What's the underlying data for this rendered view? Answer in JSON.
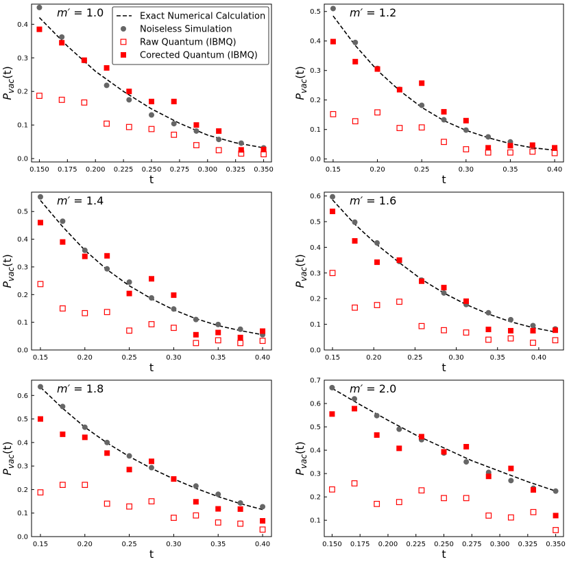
{
  "figure": {
    "ylabel": "P_vac(t)",
    "colors": {
      "exact_line": "#000000",
      "noiseless": "#666666",
      "raw": "#ff0000",
      "corrected": "#ff0000",
      "frame": "#000000"
    }
  },
  "legend": {
    "items": [
      {
        "key": "exact",
        "label": "Exact Numerical Calculation"
      },
      {
        "key": "noiseless",
        "label": "Noiseless Simulation"
      },
      {
        "key": "raw",
        "label": "Raw Quantum (IBMQ)"
      },
      {
        "key": "corrected",
        "label": "Corected Quantum (IBMQ)"
      }
    ]
  },
  "chart_data": [
    {
      "type": "scatter",
      "title": "m′ = 1.0",
      "xlabel": "t",
      "ylabel": "P_vac(t)",
      "xlim": [
        0.143,
        0.357
      ],
      "ylim": [
        -0.01,
        0.46
      ],
      "xticks": [
        0.15,
        0.175,
        0.2,
        0.225,
        0.25,
        0.275,
        0.3,
        0.325,
        0.35
      ],
      "xtick_labels": [
        "0.150",
        "0.175",
        "0.200",
        "0.225",
        "0.250",
        "0.275",
        "0.300",
        "0.325",
        "0.350"
      ],
      "yticks": [
        0.0,
        0.1,
        0.2,
        0.3,
        0.4
      ],
      "ytick_labels": [
        "0.0",
        "0.1",
        "0.2",
        "0.3",
        "0.4"
      ],
      "exact": {
        "x": [
          0.15,
          0.175,
          0.2,
          0.225,
          0.25,
          0.275,
          0.3,
          0.325,
          0.35
        ],
        "y": [
          0.42,
          0.335,
          0.26,
          0.2,
          0.148,
          0.105,
          0.07,
          0.047,
          0.032
        ]
      },
      "noiseless": {
        "x": [
          0.15,
          0.17,
          0.19,
          0.21,
          0.23,
          0.25,
          0.27,
          0.29,
          0.31,
          0.33,
          0.35
        ],
        "y": [
          0.45,
          0.362,
          0.292,
          0.218,
          0.175,
          0.13,
          0.104,
          0.082,
          0.057,
          0.046,
          0.032
        ]
      },
      "raw": {
        "x": [
          0.15,
          0.17,
          0.19,
          0.21,
          0.23,
          0.25,
          0.27,
          0.29,
          0.31,
          0.33,
          0.35
        ],
        "y": [
          0.187,
          0.175,
          0.167,
          0.104,
          0.094,
          0.088,
          0.071,
          0.04,
          0.025,
          0.015,
          0.013
        ]
      },
      "corrected": {
        "x": [
          0.15,
          0.17,
          0.19,
          0.21,
          0.23,
          0.25,
          0.27,
          0.29,
          0.31,
          0.33,
          0.35
        ],
        "y": [
          0.385,
          0.345,
          0.293,
          0.27,
          0.2,
          0.17,
          0.17,
          0.1,
          0.082,
          0.026,
          0.027
        ]
      }
    },
    {
      "type": "scatter",
      "title": "m′ = 1.2",
      "xlabel": "t",
      "ylabel": "P_vac(t)",
      "xlim": [
        0.14,
        0.41
      ],
      "ylim": [
        -0.01,
        0.525
      ],
      "xticks": [
        0.15,
        0.2,
        0.25,
        0.3,
        0.35,
        0.4
      ],
      "xtick_labels": [
        "0.15",
        "0.20",
        "0.25",
        "0.30",
        "0.35",
        "0.40"
      ],
      "yticks": [
        0.0,
        0.1,
        0.2,
        0.3,
        0.4,
        0.5
      ],
      "ytick_labels": [
        "0.0",
        "0.1",
        "0.2",
        "0.3",
        "0.4",
        "0.5"
      ],
      "exact": {
        "x": [
          0.15,
          0.175,
          0.2,
          0.225,
          0.25,
          0.275,
          0.3,
          0.325,
          0.35,
          0.375,
          0.4
        ],
        "y": [
          0.485,
          0.385,
          0.3,
          0.232,
          0.175,
          0.13,
          0.097,
          0.072,
          0.052,
          0.038,
          0.03
        ]
      },
      "noiseless": {
        "x": [
          0.15,
          0.175,
          0.2,
          0.225,
          0.25,
          0.275,
          0.3,
          0.325,
          0.35,
          0.375,
          0.4
        ],
        "y": [
          0.51,
          0.395,
          0.307,
          0.236,
          0.182,
          0.133,
          0.098,
          0.075,
          0.058,
          0.044,
          0.035
        ]
      },
      "raw": {
        "x": [
          0.15,
          0.175,
          0.2,
          0.225,
          0.25,
          0.275,
          0.3,
          0.325,
          0.35,
          0.375,
          0.4
        ],
        "y": [
          0.152,
          0.128,
          0.158,
          0.105,
          0.107,
          0.058,
          0.033,
          0.022,
          0.022,
          0.025,
          0.02
        ]
      },
      "corrected": {
        "x": [
          0.15,
          0.175,
          0.2,
          0.225,
          0.25,
          0.275,
          0.3,
          0.325,
          0.35,
          0.375,
          0.4
        ],
        "y": [
          0.398,
          0.33,
          0.305,
          0.235,
          0.257,
          0.16,
          0.13,
          0.038,
          0.045,
          0.047,
          0.038
        ]
      }
    },
    {
      "type": "scatter",
      "title": "m′ = 1.4",
      "xlabel": "t",
      "ylabel": "P_vac(t)",
      "xlim": [
        0.14,
        0.41
      ],
      "ylim": [
        0.0,
        0.57
      ],
      "xticks": [
        0.15,
        0.2,
        0.25,
        0.3,
        0.35,
        0.4
      ],
      "xtick_labels": [
        "0.15",
        "0.20",
        "0.25",
        "0.30",
        "0.35",
        "0.40"
      ],
      "yticks": [
        0.0,
        0.1,
        0.2,
        0.3,
        0.4,
        0.5
      ],
      "ytick_labels": [
        "0.0",
        "0.1",
        "0.2",
        "0.3",
        "0.4",
        "0.5"
      ],
      "exact": {
        "x": [
          0.15,
          0.175,
          0.2,
          0.225,
          0.25,
          0.275,
          0.3,
          0.325,
          0.35,
          0.375,
          0.4
        ],
        "y": [
          0.54,
          0.445,
          0.36,
          0.29,
          0.232,
          0.185,
          0.145,
          0.113,
          0.088,
          0.07,
          0.055
        ]
      },
      "noiseless": {
        "x": [
          0.15,
          0.175,
          0.2,
          0.225,
          0.25,
          0.275,
          0.3,
          0.325,
          0.35,
          0.375,
          0.4
        ],
        "y": [
          0.553,
          0.465,
          0.36,
          0.293,
          0.245,
          0.188,
          0.148,
          0.11,
          0.092,
          0.075,
          0.055
        ]
      },
      "raw": {
        "x": [
          0.15,
          0.175,
          0.2,
          0.225,
          0.25,
          0.275,
          0.3,
          0.325,
          0.35,
          0.375,
          0.4
        ],
        "y": [
          0.238,
          0.15,
          0.133,
          0.137,
          0.07,
          0.093,
          0.08,
          0.025,
          0.035,
          0.025,
          0.033
        ]
      },
      "corrected": {
        "x": [
          0.15,
          0.175,
          0.2,
          0.225,
          0.25,
          0.275,
          0.3,
          0.325,
          0.35,
          0.375,
          0.4
        ],
        "y": [
          0.46,
          0.39,
          0.338,
          0.34,
          0.204,
          0.257,
          0.198,
          0.055,
          0.063,
          0.045,
          0.068
        ]
      }
    },
    {
      "type": "scatter",
      "title": "m′ = 1.6",
      "xlabel": "t",
      "ylabel": "P_vac(t)",
      "xlim": [
        0.14,
        0.43
      ],
      "ylim": [
        0.0,
        0.615
      ],
      "xticks": [
        0.15,
        0.2,
        0.25,
        0.3,
        0.35,
        0.4
      ],
      "xtick_labels": [
        "0.15",
        "0.20",
        "0.25",
        "0.30",
        "0.35",
        "0.40"
      ],
      "yticks": [
        0.0,
        0.1,
        0.2,
        0.3,
        0.4,
        0.5,
        0.6
      ],
      "ytick_labels": [
        "0.0",
        "0.1",
        "0.2",
        "0.3",
        "0.4",
        "0.5",
        "0.6"
      ],
      "exact": {
        "x": [
          0.15,
          0.177,
          0.204,
          0.231,
          0.258,
          0.285,
          0.312,
          0.339,
          0.366,
          0.393,
          0.42
        ],
        "y": [
          0.585,
          0.49,
          0.41,
          0.34,
          0.275,
          0.222,
          0.177,
          0.14,
          0.11,
          0.087,
          0.07
        ]
      },
      "noiseless": {
        "x": [
          0.15,
          0.177,
          0.204,
          0.231,
          0.258,
          0.285,
          0.312,
          0.339,
          0.366,
          0.393,
          0.42
        ],
        "y": [
          0.597,
          0.498,
          0.417,
          0.345,
          0.272,
          0.222,
          0.177,
          0.145,
          0.118,
          0.095,
          0.082
        ]
      },
      "raw": {
        "x": [
          0.15,
          0.177,
          0.204,
          0.231,
          0.258,
          0.285,
          0.312,
          0.339,
          0.366,
          0.393,
          0.42
        ],
        "y": [
          0.3,
          0.165,
          0.175,
          0.188,
          0.093,
          0.077,
          0.068,
          0.04,
          0.045,
          0.028,
          0.038
        ]
      },
      "corrected": {
        "x": [
          0.15,
          0.177,
          0.204,
          0.231,
          0.258,
          0.285,
          0.312,
          0.339,
          0.366,
          0.393,
          0.42
        ],
        "y": [
          0.54,
          0.425,
          0.342,
          0.35,
          0.268,
          0.243,
          0.19,
          0.08,
          0.075,
          0.075,
          0.077
        ]
      }
    },
    {
      "type": "scatter",
      "title": "m′ = 1.8",
      "xlabel": "t",
      "ylabel": "P_vac(t)",
      "xlim": [
        0.14,
        0.41
      ],
      "ylim": [
        0.0,
        0.665
      ],
      "xticks": [
        0.15,
        0.2,
        0.25,
        0.3,
        0.35,
        0.4
      ],
      "xtick_labels": [
        "0.15",
        "0.20",
        "0.25",
        "0.30",
        "0.35",
        "0.40"
      ],
      "yticks": [
        0.0,
        0.1,
        0.2,
        0.3,
        0.4,
        0.5,
        0.6
      ],
      "ytick_labels": [
        "0.0",
        "0.1",
        "0.2",
        "0.3",
        "0.4",
        "0.5",
        "0.6"
      ],
      "exact": {
        "x": [
          0.15,
          0.175,
          0.2,
          0.225,
          0.25,
          0.275,
          0.3,
          0.325,
          0.35,
          0.375,
          0.4
        ],
        "y": [
          0.635,
          0.545,
          0.465,
          0.398,
          0.34,
          0.29,
          0.245,
          0.205,
          0.17,
          0.14,
          0.115
        ]
      },
      "noiseless": {
        "x": [
          0.15,
          0.175,
          0.2,
          0.225,
          0.25,
          0.275,
          0.3,
          0.325,
          0.35,
          0.375,
          0.4
        ],
        "y": [
          0.637,
          0.553,
          0.465,
          0.4,
          0.343,
          0.293,
          0.245,
          0.215,
          0.18,
          0.143,
          0.127
        ]
      },
      "raw": {
        "x": [
          0.15,
          0.175,
          0.2,
          0.225,
          0.25,
          0.275,
          0.3,
          0.325,
          0.35,
          0.375,
          0.4
        ],
        "y": [
          0.188,
          0.22,
          0.22,
          0.14,
          0.128,
          0.15,
          0.08,
          0.09,
          0.06,
          0.055,
          0.03
        ]
      },
      "corrected": {
        "x": [
          0.15,
          0.175,
          0.2,
          0.225,
          0.25,
          0.275,
          0.3,
          0.325,
          0.35,
          0.375,
          0.4
        ],
        "y": [
          0.5,
          0.435,
          0.422,
          0.355,
          0.285,
          0.32,
          0.245,
          0.148,
          0.118,
          0.117,
          0.067
        ]
      }
    },
    {
      "type": "scatter",
      "title": "m′ = 2.0",
      "xlabel": "t",
      "ylabel": "P_vac(t)",
      "xlim": [
        0.143,
        0.357
      ],
      "ylim": [
        0.03,
        0.7
      ],
      "xticks": [
        0.15,
        0.175,
        0.2,
        0.225,
        0.25,
        0.275,
        0.3,
        0.325,
        0.35
      ],
      "xtick_labels": [
        "0.150",
        "0.175",
        "0.200",
        "0.225",
        "0.250",
        "0.275",
        "0.300",
        "0.325",
        "0.350"
      ],
      "yticks": [
        0.1,
        0.2,
        0.3,
        0.4,
        0.5,
        0.6,
        0.7
      ],
      "ytick_labels": [
        "0.1",
        "0.2",
        "0.3",
        "0.4",
        "0.5",
        "0.6",
        "0.7"
      ],
      "exact": {
        "x": [
          0.15,
          0.175,
          0.2,
          0.225,
          0.25,
          0.275,
          0.3,
          0.325,
          0.35
        ],
        "y": [
          0.665,
          0.595,
          0.528,
          0.465,
          0.41,
          0.355,
          0.31,
          0.265,
          0.225
        ]
      },
      "noiseless": {
        "x": [
          0.15,
          0.17,
          0.19,
          0.21,
          0.23,
          0.25,
          0.27,
          0.29,
          0.31,
          0.33,
          0.35
        ],
        "y": [
          0.668,
          0.62,
          0.548,
          0.49,
          0.445,
          0.388,
          0.35,
          0.305,
          0.27,
          0.237,
          0.225
        ]
      },
      "raw": {
        "x": [
          0.15,
          0.17,
          0.19,
          0.21,
          0.23,
          0.25,
          0.27,
          0.29,
          0.31,
          0.33,
          0.35
        ],
        "y": [
          0.232,
          0.258,
          0.17,
          0.178,
          0.228,
          0.195,
          0.195,
          0.12,
          0.112,
          0.135,
          0.058
        ]
      },
      "corrected": {
        "x": [
          0.15,
          0.17,
          0.19,
          0.21,
          0.23,
          0.25,
          0.27,
          0.29,
          0.31,
          0.33,
          0.35
        ],
        "y": [
          0.555,
          0.578,
          0.465,
          0.408,
          0.458,
          0.393,
          0.415,
          0.288,
          0.322,
          0.23,
          0.12
        ]
      }
    }
  ]
}
